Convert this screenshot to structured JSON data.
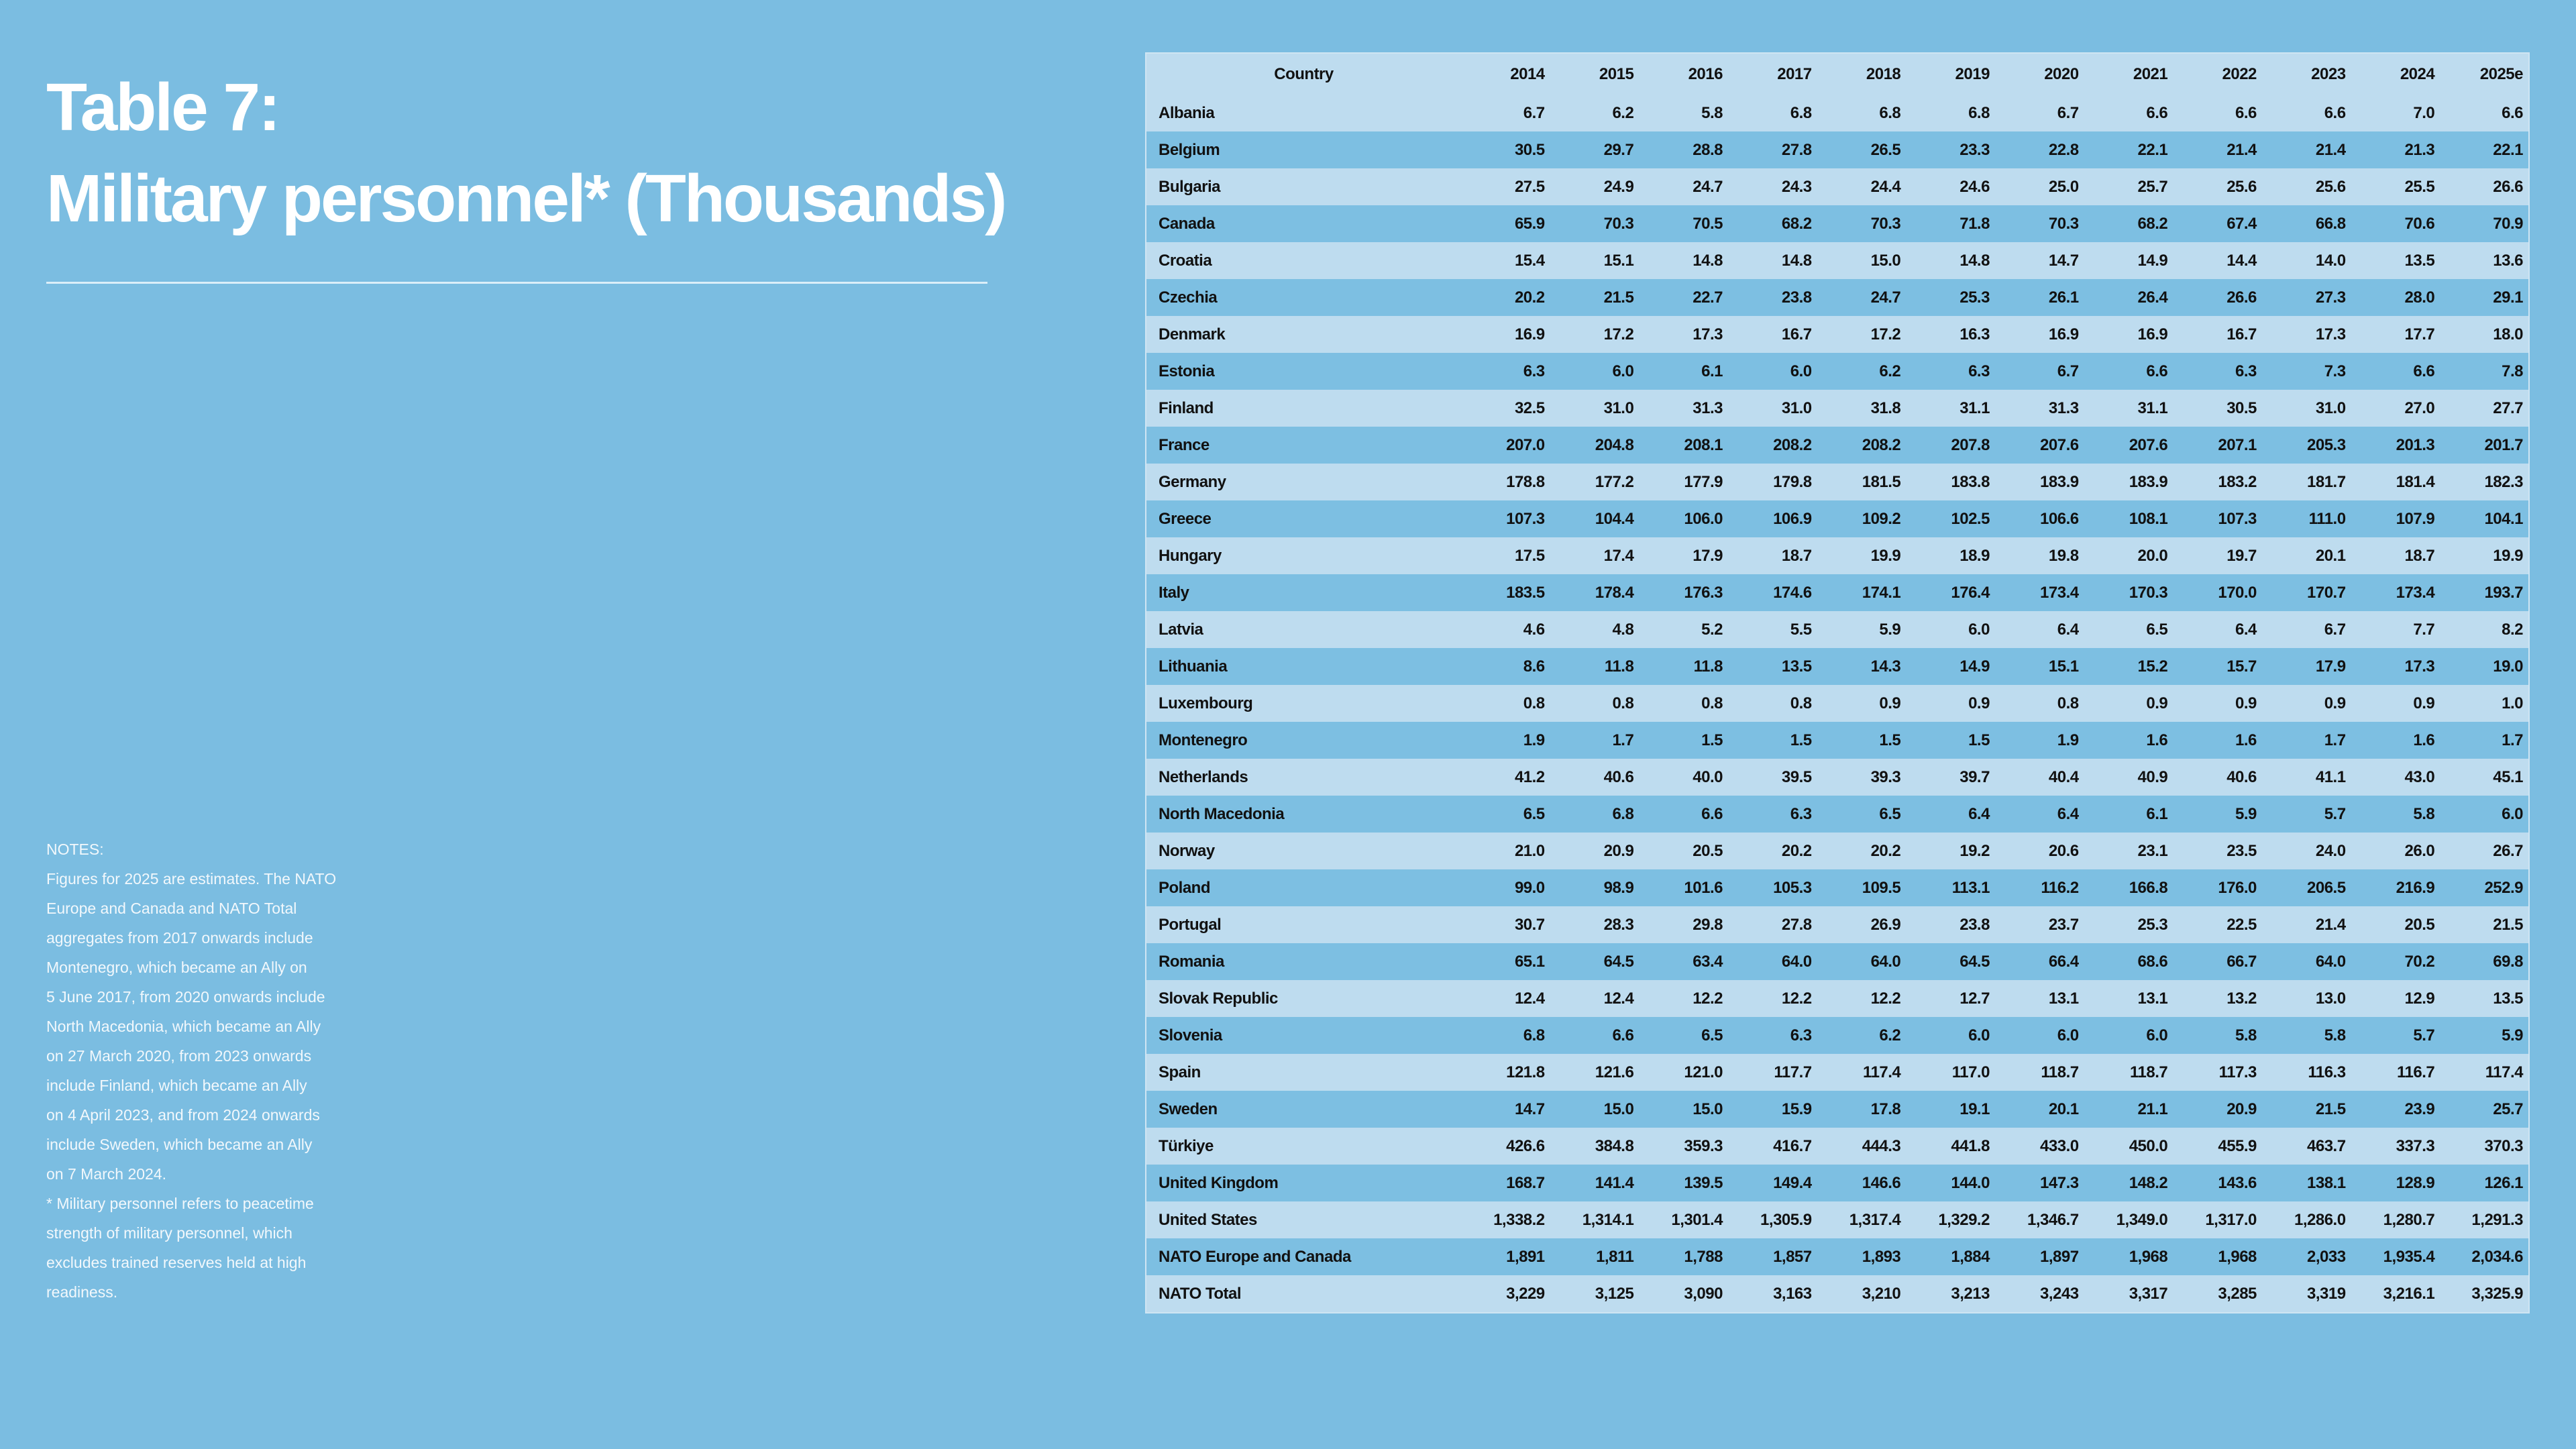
{
  "title": {
    "line1": "Table 7:",
    "line2": "Military personnel* (Thousands)"
  },
  "notes": [
    "NOTES:",
    "Figures for 2025 are estimates. The NATO",
    "Europe and Canada and NATO Total",
    "aggregates from 2017 onwards include",
    "Montenegro, which became an Ally on",
    "5 June 2017, from 2020 onwards include",
    "North Macedonia, which became an Ally",
    "on 27 March 2020, from 2023 onwards",
    "include Finland, which became an Ally",
    "on 4 April 2023, and from 2024 onwards",
    "include Sweden, which became an Ally",
    "on 7 March 2024.",
    "* Military personnel refers to peacetime",
    "strength of military personnel, which",
    "excludes trained reserves held at high",
    "readiness."
  ],
  "table": {
    "header": [
      "Country",
      "2014",
      "2015",
      "2016",
      "2017",
      "2018",
      "2019",
      "2020",
      "2021",
      "2022",
      "2023",
      "2024",
      "2025e"
    ],
    "rows": [
      [
        "Albania",
        "6.7",
        "6.2",
        "5.8",
        "6.8",
        "6.8",
        "6.8",
        "6.7",
        "6.6",
        "6.6",
        "6.6",
        "7.0",
        "6.6"
      ],
      [
        "Belgium",
        "30.5",
        "29.7",
        "28.8",
        "27.8",
        "26.5",
        "23.3",
        "22.8",
        "22.1",
        "21.4",
        "21.4",
        "21.3",
        "22.1"
      ],
      [
        "Bulgaria",
        "27.5",
        "24.9",
        "24.7",
        "24.3",
        "24.4",
        "24.6",
        "25.0",
        "25.7",
        "25.6",
        "25.6",
        "25.5",
        "26.6"
      ],
      [
        "Canada",
        "65.9",
        "70.3",
        "70.5",
        "68.2",
        "70.3",
        "71.8",
        "70.3",
        "68.2",
        "67.4",
        "66.8",
        "70.6",
        "70.9"
      ],
      [
        "Croatia",
        "15.4",
        "15.1",
        "14.8",
        "14.8",
        "15.0",
        "14.8",
        "14.7",
        "14.9",
        "14.4",
        "14.0",
        "13.5",
        "13.6"
      ],
      [
        "Czechia",
        "20.2",
        "21.5",
        "22.7",
        "23.8",
        "24.7",
        "25.3",
        "26.1",
        "26.4",
        "26.6",
        "27.3",
        "28.0",
        "29.1"
      ],
      [
        "Denmark",
        "16.9",
        "17.2",
        "17.3",
        "16.7",
        "17.2",
        "16.3",
        "16.9",
        "16.9",
        "16.7",
        "17.3",
        "17.7",
        "18.0"
      ],
      [
        "Estonia",
        "6.3",
        "6.0",
        "6.1",
        "6.0",
        "6.2",
        "6.3",
        "6.7",
        "6.6",
        "6.3",
        "7.3",
        "6.6",
        "7.8"
      ],
      [
        "Finland",
        "32.5",
        "31.0",
        "31.3",
        "31.0",
        "31.8",
        "31.1",
        "31.3",
        "31.1",
        "30.5",
        "31.0",
        "27.0",
        "27.7"
      ],
      [
        "France",
        "207.0",
        "204.8",
        "208.1",
        "208.2",
        "208.2",
        "207.8",
        "207.6",
        "207.6",
        "207.1",
        "205.3",
        "201.3",
        "201.7"
      ],
      [
        "Germany",
        "178.8",
        "177.2",
        "177.9",
        "179.8",
        "181.5",
        "183.8",
        "183.9",
        "183.9",
        "183.2",
        "181.7",
        "181.4",
        "182.3"
      ],
      [
        "Greece",
        "107.3",
        "104.4",
        "106.0",
        "106.9",
        "109.2",
        "102.5",
        "106.6",
        "108.1",
        "107.3",
        "111.0",
        "107.9",
        "104.1"
      ],
      [
        "Hungary",
        "17.5",
        "17.4",
        "17.9",
        "18.7",
        "19.9",
        "18.9",
        "19.8",
        "20.0",
        "19.7",
        "20.1",
        "18.7",
        "19.9"
      ],
      [
        "Italy",
        "183.5",
        "178.4",
        "176.3",
        "174.6",
        "174.1",
        "176.4",
        "173.4",
        "170.3",
        "170.0",
        "170.7",
        "173.4",
        "193.7"
      ],
      [
        "Latvia",
        "4.6",
        "4.8",
        "5.2",
        "5.5",
        "5.9",
        "6.0",
        "6.4",
        "6.5",
        "6.4",
        "6.7",
        "7.7",
        "8.2"
      ],
      [
        "Lithuania",
        "8.6",
        "11.8",
        "11.8",
        "13.5",
        "14.3",
        "14.9",
        "15.1",
        "15.2",
        "15.7",
        "17.9",
        "17.3",
        "19.0"
      ],
      [
        "Luxembourg",
        "0.8",
        "0.8",
        "0.8",
        "0.8",
        "0.9",
        "0.9",
        "0.8",
        "0.9",
        "0.9",
        "0.9",
        "0.9",
        "1.0"
      ],
      [
        "Montenegro",
        "1.9",
        "1.7",
        "1.5",
        "1.5",
        "1.5",
        "1.5",
        "1.9",
        "1.6",
        "1.6",
        "1.7",
        "1.6",
        "1.7"
      ],
      [
        "Netherlands",
        "41.2",
        "40.6",
        "40.0",
        "39.5",
        "39.3",
        "39.7",
        "40.4",
        "40.9",
        "40.6",
        "41.1",
        "43.0",
        "45.1"
      ],
      [
        "North Macedonia",
        "6.5",
        "6.8",
        "6.6",
        "6.3",
        "6.5",
        "6.4",
        "6.4",
        "6.1",
        "5.9",
        "5.7",
        "5.8",
        "6.0"
      ],
      [
        "Norway",
        "21.0",
        "20.9",
        "20.5",
        "20.2",
        "20.2",
        "19.2",
        "20.6",
        "23.1",
        "23.5",
        "24.0",
        "26.0",
        "26.7"
      ],
      [
        "Poland",
        "99.0",
        "98.9",
        "101.6",
        "105.3",
        "109.5",
        "113.1",
        "116.2",
        "166.8",
        "176.0",
        "206.5",
        "216.9",
        "252.9"
      ],
      [
        "Portugal",
        "30.7",
        "28.3",
        "29.8",
        "27.8",
        "26.9",
        "23.8",
        "23.7",
        "25.3",
        "22.5",
        "21.4",
        "20.5",
        "21.5"
      ],
      [
        "Romania",
        "65.1",
        "64.5",
        "63.4",
        "64.0",
        "64.0",
        "64.5",
        "66.4",
        "68.6",
        "66.7",
        "64.0",
        "70.2",
        "69.8"
      ],
      [
        "Slovak Republic",
        "12.4",
        "12.4",
        "12.2",
        "12.2",
        "12.2",
        "12.7",
        "13.1",
        "13.1",
        "13.2",
        "13.0",
        "12.9",
        "13.5"
      ],
      [
        "Slovenia",
        "6.8",
        "6.6",
        "6.5",
        "6.3",
        "6.2",
        "6.0",
        "6.0",
        "6.0",
        "5.8",
        "5.8",
        "5.7",
        "5.9"
      ],
      [
        "Spain",
        "121.8",
        "121.6",
        "121.0",
        "117.7",
        "117.4",
        "117.0",
        "118.7",
        "118.7",
        "117.3",
        "116.3",
        "116.7",
        "117.4"
      ],
      [
        "Sweden",
        "14.7",
        "15.0",
        "15.0",
        "15.9",
        "17.8",
        "19.1",
        "20.1",
        "21.1",
        "20.9",
        "21.5",
        "23.9",
        "25.7"
      ],
      [
        "Türkiye",
        "426.6",
        "384.8",
        "359.3",
        "416.7",
        "444.3",
        "441.8",
        "433.0",
        "450.0",
        "455.9",
        "463.7",
        "337.3",
        "370.3"
      ],
      [
        "United Kingdom",
        "168.7",
        "141.4",
        "139.5",
        "149.4",
        "146.6",
        "144.0",
        "147.3",
        "148.2",
        "143.6",
        "138.1",
        "128.9",
        "126.1"
      ],
      [
        "United States",
        "1,338.2",
        "1,314.1",
        "1,301.4",
        "1,305.9",
        "1,317.4",
        "1,329.2",
        "1,346.7",
        "1,349.0",
        "1,317.0",
        "1,286.0",
        "1,280.7",
        "1,291.3"
      ],
      [
        "NATO Europe and Canada",
        "1,891",
        "1,811",
        "1,788",
        "1,857",
        "1,893",
        "1,884",
        "1,897",
        "1,968",
        "1,968",
        "2,033",
        "1,935.4",
        "2,034.6"
      ],
      [
        "NATO Total",
        "3,229",
        "3,125",
        "3,090",
        "3,163",
        "3,210",
        "3,213",
        "3,243",
        "3,317",
        "3,285",
        "3,319",
        "3,216.1",
        "3,325.9"
      ]
    ]
  }
}
